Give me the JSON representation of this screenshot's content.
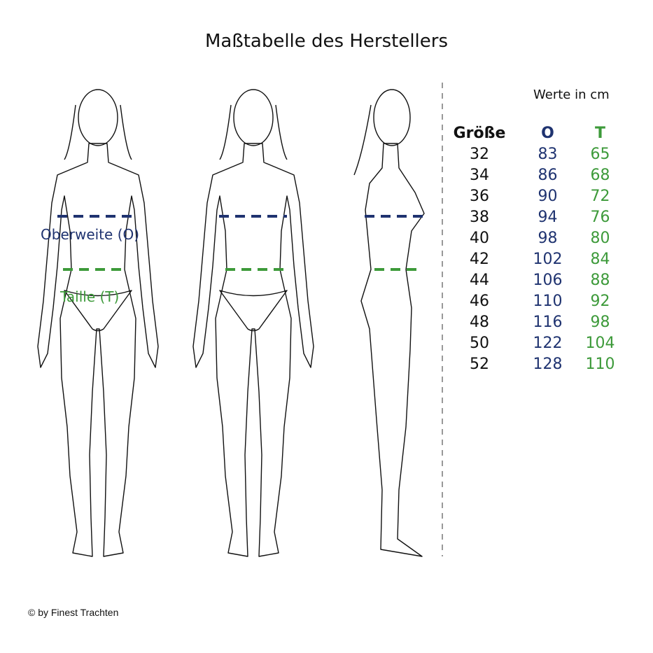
{
  "title": "Maßtabelle des Herstellers",
  "unit_note": "Werte in cm",
  "labels": {
    "bust": "Oberweite (O)",
    "waist": "Taille (T)"
  },
  "colors": {
    "bust": "#1f3370",
    "waist": "#3d9a3a",
    "outline": "#111111",
    "divider": "#999999"
  },
  "table": {
    "headers": [
      "Größe",
      "O",
      "T"
    ],
    "rows": [
      [
        "32",
        "83",
        "65"
      ],
      [
        "34",
        "86",
        "68"
      ],
      [
        "36",
        "90",
        "72"
      ],
      [
        "38",
        "94",
        "76"
      ],
      [
        "40",
        "98",
        "80"
      ],
      [
        "42",
        "102",
        "84"
      ],
      [
        "44",
        "106",
        "88"
      ],
      [
        "46",
        "110",
        "92"
      ],
      [
        "48",
        "116",
        "98"
      ],
      [
        "50",
        "122",
        "104"
      ],
      [
        "52",
        "128",
        "110"
      ]
    ]
  },
  "figures": [
    "front-view",
    "back-view",
    "side-view"
  ],
  "footer": "© by Finest Trachten"
}
